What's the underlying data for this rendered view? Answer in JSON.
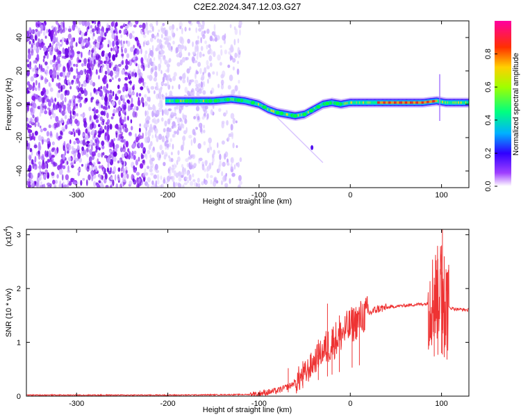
{
  "title": "C2E2.2024.347.12.03.G27",
  "chart_data": [
    {
      "type": "heatmap",
      "xlabel": "Height of straight line (km)",
      "ylabel": "Frequency (Hz)",
      "xlim": [
        -355,
        130
      ],
      "ylim": [
        -50,
        50
      ],
      "x_ticks": [
        -300,
        -200,
        -100,
        0,
        100
      ],
      "y_ticks": [
        -40,
        -20,
        0,
        20,
        40
      ],
      "colorbar": {
        "label": "Normalized spectral amplitude",
        "range": [
          0,
          1
        ],
        "ticks": [
          "0.0",
          "0.2",
          "0.4",
          "0.6",
          "0.8"
        ],
        "colors": [
          "#ffffff",
          "#7f00ff",
          "#0000ff",
          "#00ffff",
          "#00ff00",
          "#ffff00",
          "#ff8000",
          "#ff0000",
          "#ff00ff"
        ]
      },
      "noise_region_x": [
        -355,
        -120
      ],
      "signal_ridge": {
        "x": [
          -202,
          -190,
          -170,
          -150,
          -130,
          -115,
          -100,
          -90,
          -80,
          -70,
          -60,
          -50,
          -40,
          -30,
          -20,
          -10,
          0,
          20,
          50,
          80,
          95,
          105,
          130
        ],
        "y": [
          2,
          2,
          2,
          2,
          3,
          2,
          0,
          -3,
          -5,
          -6,
          -7,
          -6,
          -3,
          0,
          1,
          0,
          1,
          1,
          1,
          1,
          2,
          1,
          1
        ]
      }
    },
    {
      "type": "line",
      "xlabel": "Height of straight line (km)",
      "ylabel": "SNR (10 * v/v)",
      "y_multiplier": "(x10",
      "y_multiplier_exp": "4",
      "y_multiplier_close": ")",
      "xlim": [
        -355,
        130
      ],
      "ylim": [
        0,
        3.1
      ],
      "x_ticks": [
        -300,
        -200,
        -100,
        0,
        100
      ],
      "y_ticks": [
        0,
        1,
        2,
        3
      ],
      "series_color": "#ee3333",
      "envelope": {
        "x": [
          -355,
          -200,
          -110,
          -95,
          -80,
          -65,
          -50,
          -35,
          -20,
          -10,
          0,
          15,
          30,
          50,
          70,
          85,
          95,
          100,
          104,
          108,
          115,
          130
        ],
        "y": [
          0.02,
          0.02,
          0.03,
          0.06,
          0.1,
          0.2,
          0.4,
          0.75,
          1.0,
          1.15,
          1.3,
          1.5,
          1.62,
          1.67,
          1.7,
          1.72,
          1.9,
          2.0,
          1.75,
          1.65,
          1.62,
          1.6
        ]
      },
      "spikes": [
        {
          "x": -68,
          "y": 0.52
        },
        {
          "x": -52,
          "y": 0.65
        },
        {
          "x": -35,
          "y": 1.05
        },
        {
          "x": -25,
          "y": 1.72
        },
        {
          "x": -20,
          "y": 1.25
        },
        {
          "x": -12,
          "y": 1.5
        },
        {
          "x": 2,
          "y": 1.42
        },
        {
          "x": 10,
          "y": 1.55
        },
        {
          "x": 92,
          "y": 2.2
        },
        {
          "x": 96,
          "y": 2.55
        },
        {
          "x": 100,
          "y": 2.8
        },
        {
          "x": 101,
          "y": 3.1
        },
        {
          "x": 103,
          "y": 2.6
        },
        {
          "x": 106,
          "y": 2.3
        }
      ]
    }
  ]
}
